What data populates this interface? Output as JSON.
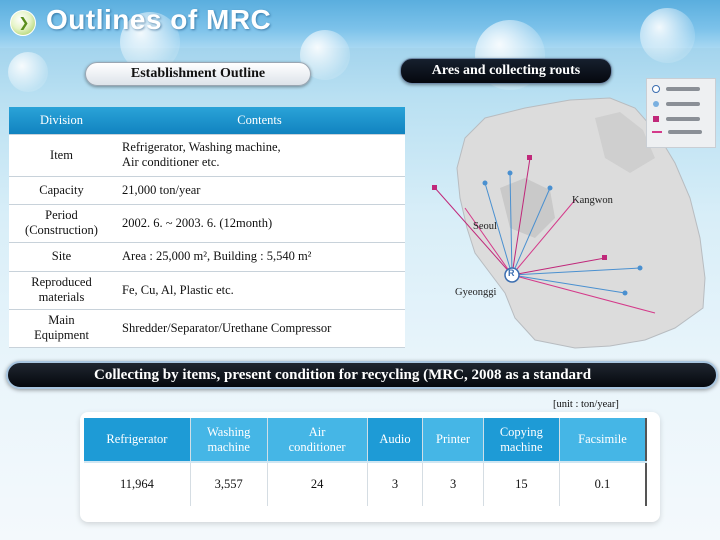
{
  "header": {
    "title": "Outlines of MRC",
    "icon": "play-circle-icon"
  },
  "establishment": {
    "pill_label": "Establishment Outline",
    "col_division": "Division",
    "col_contents": "Contents",
    "rows": [
      {
        "key": "Item",
        "value_lines": [
          "Refrigerator, Washing machine,",
          "Air conditioner etc."
        ]
      },
      {
        "key": "Capacity",
        "value_lines": [
          "21,000 ton/year"
        ]
      },
      {
        "key_lines": [
          "Period",
          "(Construction)"
        ],
        "value_lines": [
          "2002. 6. ~ 2003. 6. (12month)"
        ]
      },
      {
        "key": "Site",
        "value_lines": [
          "Area : 25,000 m², Building : 5,540 m²"
        ]
      },
      {
        "key_lines": [
          "Reproduced",
          "materials"
        ],
        "value_lines": [
          "Fe, Cu, Al, Plastic etc."
        ]
      },
      {
        "key_lines": [
          "Main",
          "Equipment"
        ],
        "value_lines": [
          "Shredder/Separator/Urethane Compressor"
        ]
      }
    ]
  },
  "routes": {
    "pill_label": "Ares and collecting routs",
    "labels": {
      "kangwon": "Kangwon",
      "seoul": "Seoul",
      "gyeonggi": "Gyeonggi",
      "marker": "R"
    },
    "legend": [
      {
        "symbol": "r-circle",
        "color": "#3a6db0"
      },
      {
        "symbol": "dot",
        "color": "#7ab0e0"
      },
      {
        "symbol": "square",
        "color": "#c0287a"
      },
      {
        "symbol": "line",
        "color": "#d43a8a"
      }
    ]
  },
  "collecting": {
    "banner": "Collecting by items, present condition for recycling  (MRC, 2008 as a standard",
    "unit": "[unit : ton/year]",
    "columns": [
      [
        "Refrigerator"
      ],
      [
        "Washing",
        "machine"
      ],
      [
        "Air",
        "conditioner"
      ],
      [
        "Audio"
      ],
      [
        "Printer"
      ],
      [
        "Copying",
        "machine"
      ],
      [
        "Facsimile"
      ]
    ],
    "values": [
      "11,964",
      "3,557",
      "24",
      "3",
      "3",
      "15",
      "0.1"
    ]
  }
}
